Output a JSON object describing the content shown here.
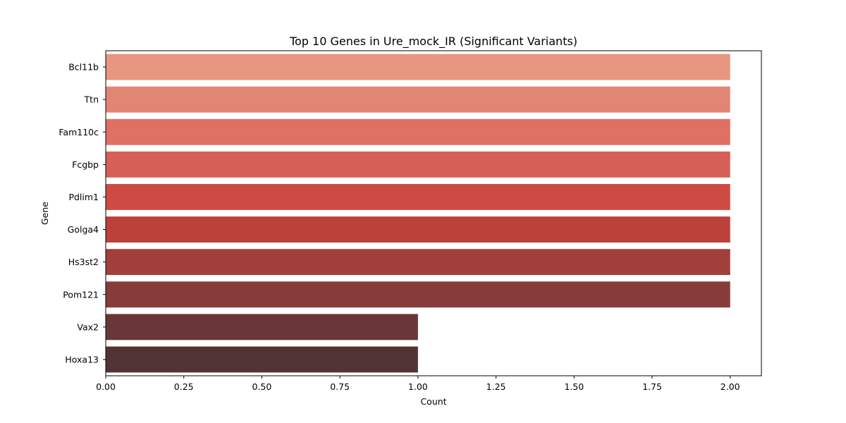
{
  "chart_data": {
    "type": "bar",
    "orientation": "horizontal",
    "title": "Top 10 Genes in Ure_mock_IR (Significant Variants)",
    "xlabel": "Count",
    "ylabel": "Gene",
    "categories": [
      "Bcl11b",
      "Ttn",
      "Fam110c",
      "Fcgbp",
      "Pdlim1",
      "Golga4",
      "Hs3st2",
      "Pom121",
      "Vax2",
      "Hoxa13"
    ],
    "values": [
      2,
      2,
      2,
      2,
      2,
      2,
      2,
      2,
      1,
      1
    ],
    "colors": [
      "#e8967f",
      "#e38574",
      "#de7164",
      "#d66057",
      "#cd4b43",
      "#bc413b",
      "#a03f3b",
      "#883c3a",
      "#693737",
      "#523334"
    ],
    "xlim": [
      0,
      2.1
    ],
    "xticks": [
      0.0,
      0.25,
      0.5,
      0.75,
      1.0,
      1.25,
      1.5,
      1.75,
      2.0
    ],
    "xtick_labels": [
      "0.00",
      "0.25",
      "0.50",
      "0.75",
      "1.00",
      "1.25",
      "1.50",
      "1.75",
      "2.00"
    ],
    "grid": false,
    "legend": "none"
  }
}
